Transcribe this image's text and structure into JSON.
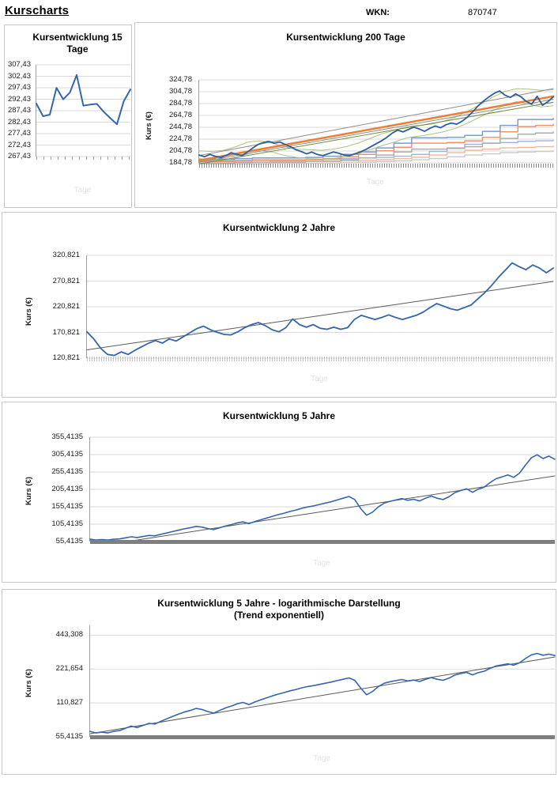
{
  "page": {
    "title": "Kurscharts",
    "wkn_label": "WKN:",
    "wkn_value": "870747"
  },
  "chart_data": [
    {
      "type": "line",
      "title": "Kursentwicklung 15 Tage",
      "xlabel": "Tage",
      "ylim": [
        267.43,
        307.43
      ],
      "yticks": [
        {
          "label": "307,43",
          "value": 307.43
        },
        {
          "label": "302,43",
          "value": 302.43
        },
        {
          "label": "297,43",
          "value": 297.43
        },
        {
          "label": "292,43",
          "value": 292.43
        },
        {
          "label": "287,43",
          "value": 287.43
        },
        {
          "label": "282,43",
          "value": 282.43
        },
        {
          "label": "277,43",
          "value": 277.43
        },
        {
          "label": "272,43",
          "value": 272.43
        },
        {
          "label": "267,43",
          "value": 267.43
        }
      ],
      "series": [
        {
          "name": "kurs",
          "color": "#3465AD",
          "width": 2,
          "values": [
            290.5,
            285.0,
            285.7,
            297.4,
            292.4,
            295.4,
            303.0,
            289.6,
            290.1,
            290.4,
            287.0,
            284.2,
            281.5,
            291.5,
            296.7
          ]
        }
      ]
    },
    {
      "type": "line",
      "title": "Kursentwicklung 200 Tage",
      "ylabel": "Kurs (€)",
      "xlabel": "Tage",
      "ylim": [
        184.78,
        324.78
      ],
      "yticks": [
        {
          "label": "324,78",
          "value": 324.78
        },
        {
          "label": "304,78",
          "value": 304.78
        },
        {
          "label": "284,78",
          "value": 284.78
        },
        {
          "label": "264,78",
          "value": 264.78
        },
        {
          "label": "244,78",
          "value": 244.78
        },
        {
          "label": "224,78",
          "value": 224.78
        },
        {
          "label": "204,78",
          "value": 204.78
        },
        {
          "label": "184,78",
          "value": 184.78
        }
      ],
      "series": [
        {
          "name": "level-gray-2",
          "color": "#C9C9C9",
          "width": 1.4,
          "step": true,
          "values": [
            183,
            183,
            183,
            183,
            184,
            184,
            184,
            184,
            185,
            186,
            187,
            188,
            190,
            192,
            195,
            198,
            200,
            202,
            203,
            204,
            205
          ]
        },
        {
          "name": "level-salmon-2",
          "color": "#F5B59B",
          "width": 1.4,
          "step": true,
          "values": [
            186,
            186,
            186,
            186,
            187,
            187,
            187,
            187,
            188,
            189,
            190,
            192,
            194,
            198,
            202,
            206,
            208,
            210,
            211,
            212,
            213
          ]
        },
        {
          "name": "level-blue-2",
          "color": "#9DB3DC",
          "width": 1.4,
          "step": true,
          "values": [
            189,
            189,
            189,
            190,
            190,
            190,
            190,
            191,
            192,
            193,
            194,
            196,
            199,
            204,
            210,
            216,
            218,
            219,
            221,
            222,
            223
          ]
        },
        {
          "name": "level-gray-1",
          "color": "#ADADAD",
          "width": 1.5,
          "step": true,
          "values": [
            184,
            184,
            185,
            186,
            186,
            186,
            187,
            188,
            190,
            193,
            198,
            203,
            208,
            208,
            209,
            212,
            218,
            226,
            233,
            235,
            237
          ]
        },
        {
          "name": "level-salmon-1",
          "color": "#F0926C",
          "width": 1.5,
          "step": true,
          "values": [
            187,
            187,
            188,
            189,
            189,
            189,
            190,
            192,
            195,
            199,
            205,
            211,
            218,
            218,
            219,
            222,
            228,
            237,
            246,
            248,
            250
          ]
        },
        {
          "name": "level-blue-1",
          "color": "#7D9BD0",
          "width": 1.5,
          "step": true,
          "values": [
            191,
            191,
            192,
            193,
            193,
            193,
            194,
            196,
            199,
            203,
            210,
            218,
            227,
            227,
            228,
            231,
            238,
            248,
            258,
            258,
            260
          ]
        },
        {
          "name": "band-oben",
          "color": "#A9C47F",
          "width": 1,
          "values": [
            205,
            204,
            206,
            212,
            220,
            222,
            218,
            212,
            208,
            207,
            206,
            208,
            212,
            218,
            226,
            234,
            240,
            246,
            248,
            250,
            255,
            262,
            272,
            283,
            295,
            305,
            310,
            309,
            307,
            308
          ]
        },
        {
          "name": "band-unten",
          "color": "#A9C47F",
          "width": 1,
          "values": [
            192,
            190,
            189,
            193,
            200,
            205,
            203,
            197,
            194,
            192,
            191,
            192,
            195,
            200,
            207,
            214,
            220,
            227,
            230,
            233,
            237,
            243,
            252,
            262,
            272,
            282,
            288,
            284,
            279,
            281
          ]
        },
        {
          "name": "kanal-oben",
          "color": "#8C8C8C",
          "width": 1,
          "x": [
            0,
            100
          ],
          "values": [
            197,
            310
          ]
        },
        {
          "name": "kanal-unten",
          "color": "#8C8C8C",
          "width": 1,
          "x": [
            0,
            100
          ],
          "values": [
            186,
            292
          ]
        },
        {
          "name": "trend-gruen",
          "color": "#6E8B3D",
          "width": 1,
          "x": [
            0,
            100
          ],
          "values": [
            183,
            287
          ]
        },
        {
          "name": "trend-linear",
          "color": "#ED7D31",
          "width": 2.5,
          "x": [
            0,
            100
          ],
          "values": [
            189,
            297
          ]
        },
        {
          "name": "kurs",
          "color": "#2E5D9F",
          "width": 1.8,
          "values": [
            198,
            195,
            199,
            196,
            194,
            197,
            202,
            199,
            197,
            203,
            210,
            216,
            219,
            221,
            218,
            220,
            216,
            212,
            207,
            204,
            200,
            203,
            199,
            197,
            200,
            203,
            201,
            198,
            197,
            200,
            203,
            207,
            212,
            217,
            222,
            228,
            235,
            240,
            237,
            241,
            245,
            242,
            238,
            243,
            247,
            244,
            249,
            252,
            250,
            255,
            262,
            271,
            281,
            289,
            296,
            302,
            306,
            299,
            295,
            301,
            296,
            288,
            284,
            297,
            282,
            288,
            296
          ]
        }
      ]
    },
    {
      "type": "line",
      "title": "Kursentwicklung 2 Jahre",
      "ylabel": "Kurs (€)",
      "xlabel": "Tage",
      "ylim": [
        120.821,
        320.821
      ],
      "yticks": [
        {
          "label": "320,821",
          "value": 320.821
        },
        {
          "label": "270,821",
          "value": 270.821
        },
        {
          "label": "220,821",
          "value": 220.821
        },
        {
          "label": "170,821",
          "value": 170.821
        },
        {
          "label": "120,821",
          "value": 120.821
        }
      ],
      "series": [
        {
          "name": "trend-linear",
          "color": "#5A5A5A",
          "width": 1,
          "x": [
            0,
            100
          ],
          "values": [
            137,
            270
          ]
        },
        {
          "name": "kurs",
          "color": "#3465AD",
          "width": 1.8,
          "values": [
            172,
            158,
            140,
            128,
            126,
            133,
            128,
            136,
            143,
            150,
            155,
            150,
            158,
            154,
            162,
            170,
            178,
            183,
            176,
            171,
            167,
            166,
            172,
            180,
            186,
            190,
            184,
            176,
            172,
            180,
            197,
            186,
            181,
            186,
            179,
            177,
            181,
            177,
            180,
            196,
            204,
            200,
            196,
            200,
            205,
            200,
            196,
            200,
            204,
            210,
            219,
            227,
            222,
            217,
            214,
            219,
            224,
            236,
            248,
            262,
            278,
            292,
            306,
            299,
            293,
            302,
            296,
            287,
            296
          ]
        }
      ]
    },
    {
      "type": "line",
      "title": "Kursentwicklung 5 Jahre",
      "ylabel": "Kurs (€)",
      "xlabel": "Tage",
      "ylim": [
        55.4135,
        355.4135
      ],
      "yticks": [
        {
          "label": "355,4135",
          "value": 355.4135
        },
        {
          "label": "305,4135",
          "value": 305.4135
        },
        {
          "label": "255,4135",
          "value": 255.4135
        },
        {
          "label": "205,4135",
          "value": 205.4135
        },
        {
          "label": "155,4135",
          "value": 155.4135
        },
        {
          "label": "105,4135",
          "value": 105.4135
        },
        {
          "label": "55,4135",
          "value": 55.4135
        }
      ],
      "series": [
        {
          "name": "trend-linear",
          "color": "#5A5A5A",
          "width": 1,
          "x": [
            8,
            100
          ],
          "values": [
            55.5,
            244
          ]
        },
        {
          "name": "kurs",
          "color": "#3465AD",
          "width": 1.6,
          "values": [
            62,
            60,
            61,
            60,
            62,
            63,
            66,
            69,
            67,
            70,
            73,
            72,
            76,
            80,
            84,
            88,
            92,
            95,
            99,
            97,
            93,
            90,
            95,
            100,
            104,
            109,
            112,
            107,
            113,
            118,
            123,
            128,
            133,
            137,
            142,
            146,
            151,
            155,
            158,
            162,
            166,
            170,
            175,
            180,
            185,
            176,
            150,
            131,
            140,
            155,
            166,
            171,
            175,
            179,
            174,
            177,
            172,
            180,
            186,
            180,
            176,
            184,
            196,
            202,
            207,
            197,
            206,
            212,
            225,
            236,
            241,
            247,
            240,
            252,
            275,
            296,
            305,
            294,
            301,
            292
          ]
        }
      ]
    },
    {
      "type": "line",
      "title": "Kursentwicklung 5 Jahre - logarithmische Darstellung",
      "subtitle": "(Trend exponentiell)",
      "ylabel": "Kurs (€)",
      "xlabel": "Tage",
      "yscale": "log",
      "ylim": [
        55.4135,
        542
      ],
      "yticks": [
        {
          "label": "443,308",
          "value": 443.308
        },
        {
          "label": "221,654",
          "value": 221.654
        },
        {
          "label": "110,827",
          "value": 110.827
        },
        {
          "label": "55,4135",
          "value": 55.4135
        }
      ],
      "series": [
        {
          "name": "trend-exponentiell",
          "color": "#5A5A5A",
          "width": 1,
          "x": [
            0,
            100
          ],
          "values": [
            59,
            284
          ]
        },
        {
          "name": "kurs",
          "color": "#3465AD",
          "width": 1.6,
          "values": [
            62,
            60,
            61,
            60,
            62,
            63,
            66,
            69,
            67,
            70,
            73,
            72,
            76,
            80,
            84,
            88,
            92,
            95,
            99,
            97,
            93,
            90,
            95,
            100,
            104,
            109,
            112,
            107,
            113,
            118,
            123,
            128,
            133,
            137,
            142,
            146,
            151,
            155,
            158,
            162,
            166,
            170,
            175,
            180,
            185,
            176,
            150,
            131,
            140,
            155,
            166,
            171,
            175,
            179,
            174,
            177,
            172,
            180,
            186,
            180,
            176,
            184,
            196,
            202,
            207,
            197,
            206,
            212,
            225,
            236,
            241,
            247,
            240,
            252,
            275,
            296,
            305,
            294,
            301,
            292
          ]
        }
      ]
    }
  ]
}
